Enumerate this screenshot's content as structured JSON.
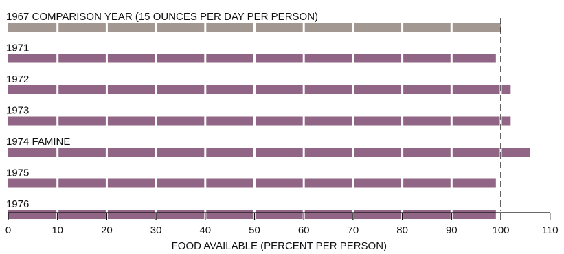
{
  "chart_data": {
    "type": "bar",
    "orientation": "horizontal",
    "categories": [
      "1967 COMPARISON YEAR (15 OUNCES PER DAY PER PERSON)",
      "1971",
      "1972",
      "1973",
      "1974 FAMINE",
      "1975",
      "1976"
    ],
    "values": [
      100,
      99,
      102,
      102,
      106,
      99,
      99
    ],
    "xlabel": "FOOD AVAILABLE (PERCENT PER PERSON)",
    "xlim": [
      0,
      110
    ],
    "xticks": [
      0,
      10,
      20,
      30,
      40,
      50,
      60,
      70,
      80,
      90,
      100,
      110
    ],
    "reference_line": 100,
    "grid": false,
    "colors": {
      "baseline_bar": "#a39891",
      "bar": "#916585",
      "segment_gap": "#ffffff",
      "axis": "#111111"
    }
  }
}
